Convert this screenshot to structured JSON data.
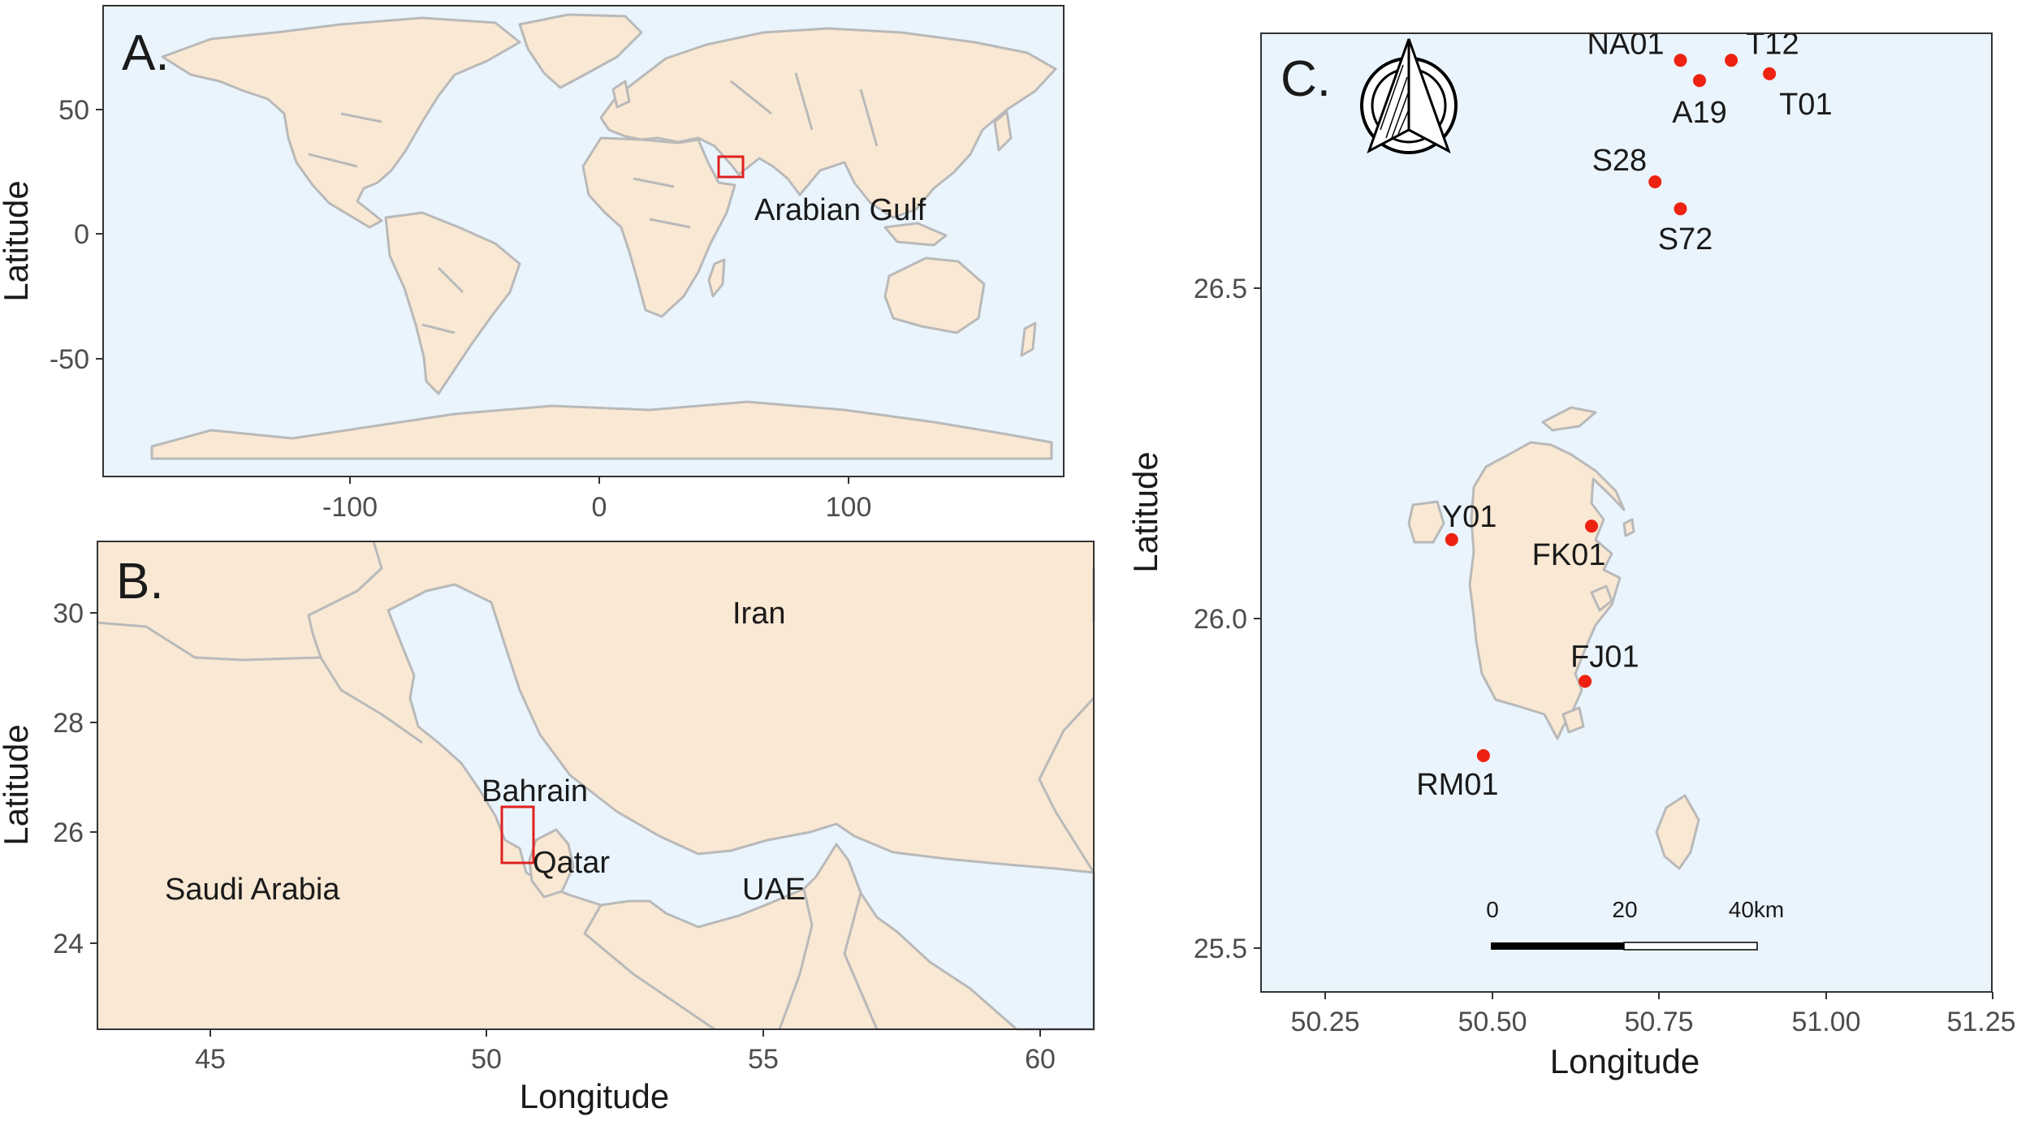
{
  "colors": {
    "sea": "#eaf4fd",
    "land": "#f9e8d3",
    "border": "#b9b9b9",
    "site": "#ee2211",
    "highlight_box": "#e02020"
  },
  "panels": {
    "a": {
      "letter": "A.",
      "ylabel": "Latitude",
      "x_ticks": [
        "-100",
        "0",
        "100"
      ],
      "y_ticks": [
        "50",
        "0",
        "-50"
      ],
      "region_label": "Arabian Gulf"
    },
    "b": {
      "letter": "B.",
      "xlabel": "Longitude",
      "ylabel": "Latitude",
      "x_ticks": [
        "45",
        "50",
        "55",
        "60"
      ],
      "y_ticks": [
        "30",
        "28",
        "26",
        "24"
      ],
      "countries": {
        "iran": "Iran",
        "bahrain": "Bahrain",
        "qatar": "Qatar",
        "saudi_arabia": "Saudi Arabia",
        "uae": "UAE"
      }
    },
    "c": {
      "letter": "C.",
      "xlabel": "Longitude",
      "ylabel": "Latitude",
      "x_ticks": [
        "50.25",
        "50.50",
        "50.75",
        "51.00",
        "51.25"
      ],
      "y_ticks": [
        "26.5",
        "26.0",
        "25.5"
      ],
      "scale_bar": {
        "labels": [
          "0",
          "20",
          "40km"
        ]
      },
      "north_arrow_icon": "north-arrow-icon"
    }
  },
  "chart_data": {
    "type": "scatter",
    "xlim": [
      50.14,
      51.29
    ],
    "ylim": [
      25.44,
      26.86
    ],
    "sites": [
      {
        "name": "NA01",
        "lon": 50.8,
        "lat": 26.82
      },
      {
        "name": "T12",
        "lon": 50.88,
        "lat": 26.82
      },
      {
        "name": "A19",
        "lon": 50.83,
        "lat": 26.79
      },
      {
        "name": "T01",
        "lon": 50.94,
        "lat": 26.8
      },
      {
        "name": "S28",
        "lon": 50.76,
        "lat": 26.64
      },
      {
        "name": "S72",
        "lon": 50.8,
        "lat": 26.6
      },
      {
        "name": "Y01",
        "lon": 50.44,
        "lat": 26.11
      },
      {
        "name": "FK01",
        "lon": 50.66,
        "lat": 26.13
      },
      {
        "name": "FJ01",
        "lon": 50.65,
        "lat": 25.9
      },
      {
        "name": "RM01",
        "lon": 50.49,
        "lat": 25.79
      }
    ]
  }
}
